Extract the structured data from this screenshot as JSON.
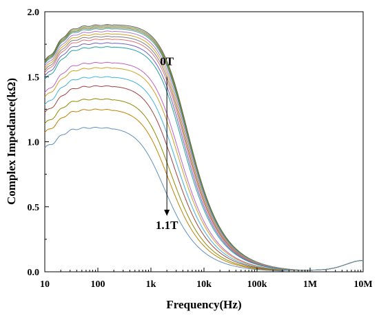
{
  "chart_data": {
    "type": "line",
    "xlabel": "Frequency(Hz)",
    "ylabel": "Complex Impedance(kΩ)",
    "x_scale": "log",
    "xlim": [
      10,
      10000000
    ],
    "ylim": [
      0,
      2.0
    ],
    "x_ticks": [
      {
        "value": 10,
        "label": "10"
      },
      {
        "value": 100,
        "label": "100"
      },
      {
        "value": 1000,
        "label": "1k"
      },
      {
        "value": 10000,
        "label": "10k"
      },
      {
        "value": 100000,
        "label": "100k"
      },
      {
        "value": 1000000,
        "label": "1M"
      },
      {
        "value": 10000000,
        "label": "10M"
      }
    ],
    "y_ticks": [
      {
        "value": 0.0,
        "label": "0.0"
      },
      {
        "value": 0.5,
        "label": "0.5"
      },
      {
        "value": 1.0,
        "label": "1.0"
      },
      {
        "value": 1.5,
        "label": "1.5"
      },
      {
        "value": 2.0,
        "label": "2.0"
      }
    ],
    "grid": false,
    "annotations": [
      {
        "text": "0T",
        "x": 2000,
        "y": 1.59
      },
      {
        "text": "1.1T",
        "x": 2000,
        "y": 0.33
      }
    ],
    "arrow": {
      "x": 2000,
      "y_from": 1.5,
      "y_to": 0.43
    },
    "series": [
      {
        "color": "#5b5b5b",
        "peak": 1.91
      },
      {
        "color": "#6b8e23",
        "peak": 1.9
      },
      {
        "color": "#8b6b3a",
        "peak": 1.89
      },
      {
        "color": "#3aa0a0",
        "peak": 1.88
      },
      {
        "color": "#b07ad0",
        "peak": 1.86
      },
      {
        "color": "#d4a020",
        "peak": 1.84
      },
      {
        "color": "#808080",
        "peak": 1.82
      },
      {
        "color": "#e07070",
        "peak": 1.8
      },
      {
        "color": "#7060c0",
        "peak": 1.77
      },
      {
        "color": "#20a0a0",
        "peak": 1.74
      },
      {
        "color": "#c060c0",
        "peak": 1.62
      },
      {
        "color": "#d0a020",
        "peak": 1.58
      },
      {
        "color": "#40b0e0",
        "peak": 1.51
      },
      {
        "color": "#a04040",
        "peak": 1.44
      },
      {
        "color": "#8b8b00",
        "peak": 1.34
      },
      {
        "color": "#c08000",
        "peak": 1.26
      },
      {
        "color": "#5f8fbf",
        "peak": 1.12
      }
    ]
  }
}
